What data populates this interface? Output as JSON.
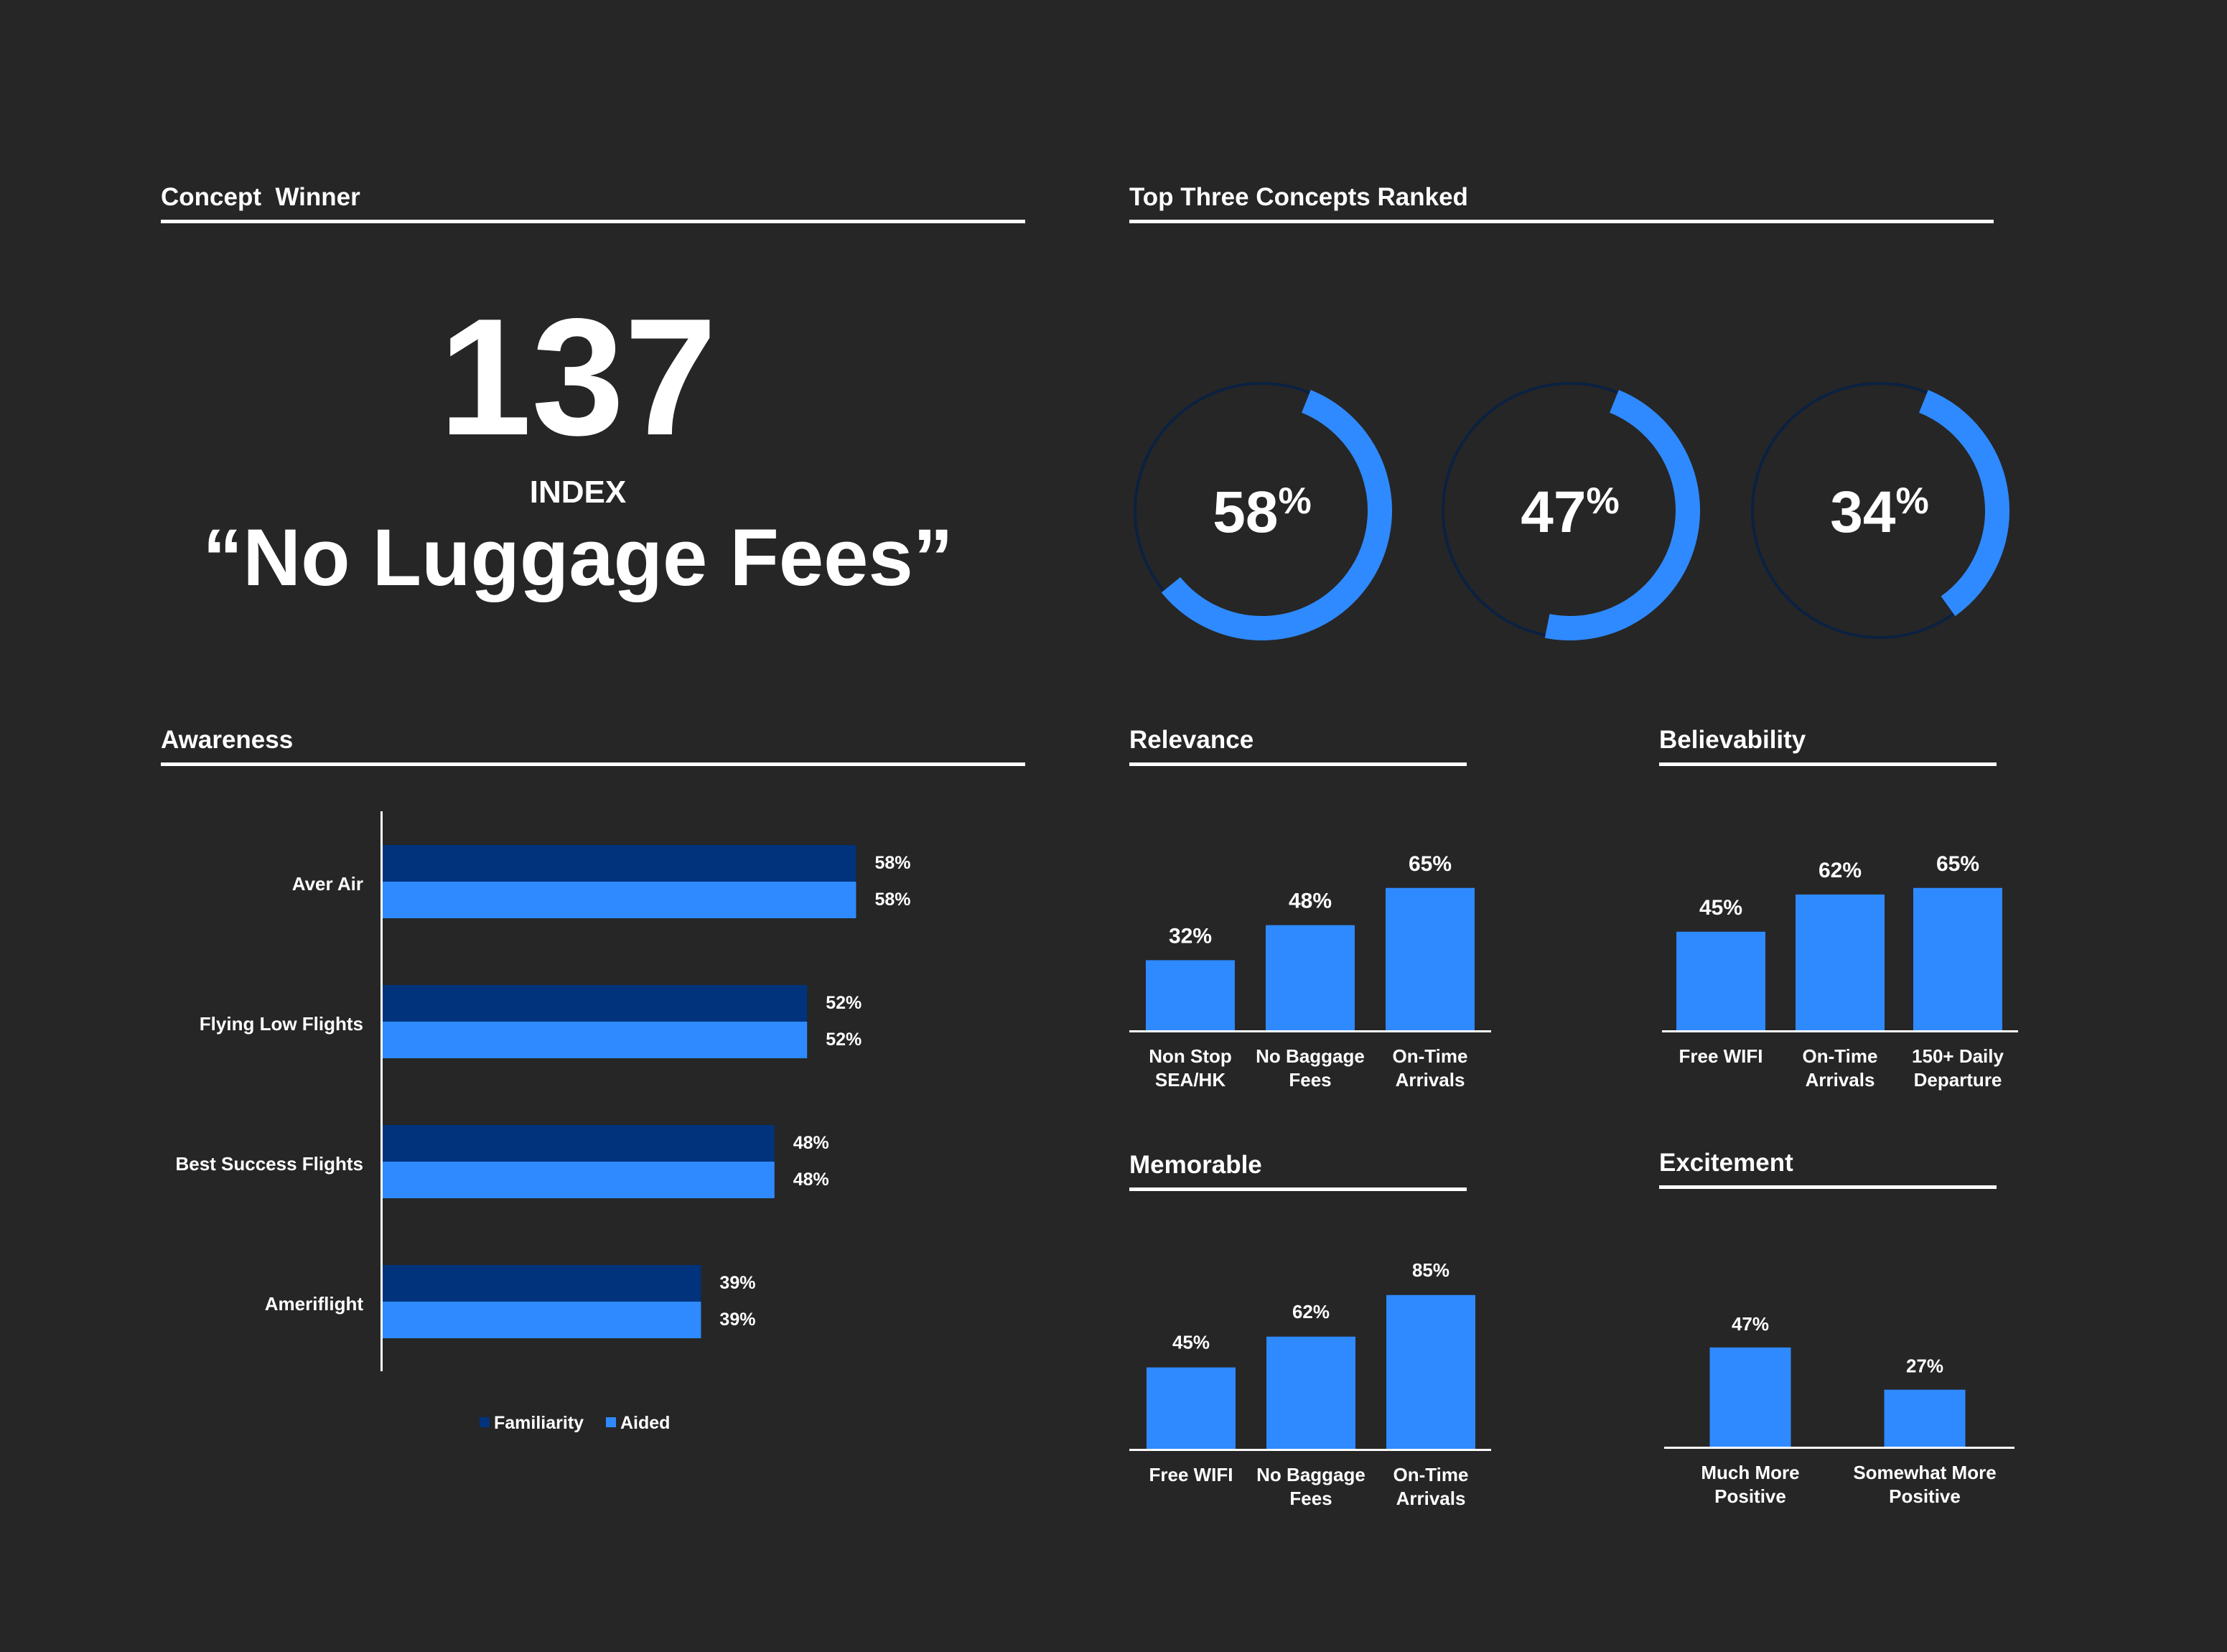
{
  "colors": {
    "background": "#262626",
    "text": "#ffffff",
    "accent_blue": "#2f8aff",
    "dark_blue": "#00337c",
    "ring_track": "#0b2140"
  },
  "concept_winner": {
    "section_title": "Concept  Winner",
    "index_value": "137",
    "index_label": "INDEX",
    "concept_name": "“No Luggage Fees”"
  },
  "top_three": {
    "section_title": "Top Three Concepts Ranked",
    "rings": [
      {
        "value": 58,
        "number": "58",
        "unit": "%"
      },
      {
        "value": 47,
        "number": "47",
        "unit": "%"
      },
      {
        "value": 34,
        "number": "34",
        "unit": "%"
      }
    ]
  },
  "chart_data": [
    {
      "id": "awareness",
      "type": "bar",
      "orientation": "horizontal",
      "title": "Awareness",
      "categories": [
        "Aver Air",
        "Flying Low Flights",
        "Best Success Flights",
        "Ameriflight"
      ],
      "series": [
        {
          "name": "Familiarity",
          "color": "#00337c",
          "values": [
            58,
            52,
            48,
            39
          ],
          "labels": [
            "58%",
            "52%",
            "48%",
            "39%"
          ]
        },
        {
          "name": "Aided",
          "color": "#2f8aff",
          "values": [
            58,
            52,
            48,
            39
          ],
          "labels": [
            "58%",
            "52%",
            "48%",
            "39%"
          ]
        }
      ],
      "xlim": [
        0,
        100
      ],
      "legend_position": "bottom"
    },
    {
      "id": "relevance",
      "type": "bar",
      "title": "Relevance",
      "categories": [
        [
          "Non Stop",
          "SEA/HK"
        ],
        [
          "No Baggage",
          "Fees"
        ],
        [
          "On-Time",
          "Arrivals"
        ]
      ],
      "values": [
        32,
        48,
        65
      ],
      "labels": [
        "32%",
        "48%",
        "65%"
      ],
      "ylim": [
        0,
        100
      ]
    },
    {
      "id": "believability",
      "type": "bar",
      "title": "Believability",
      "categories": [
        [
          "Free WIFI"
        ],
        [
          "On-Time",
          "Arrivals"
        ],
        [
          "150+ Daily",
          "Departure"
        ]
      ],
      "values": [
        45,
        62,
        65
      ],
      "labels": [
        "45%",
        "62%",
        "65%"
      ],
      "ylim": [
        0,
        100
      ]
    },
    {
      "id": "memorable",
      "type": "bar",
      "title": "Memorable",
      "categories": [
        [
          "Free WIFI"
        ],
        [
          "No Baggage",
          "Fees"
        ],
        [
          "On-Time",
          "Arrivals"
        ]
      ],
      "values": [
        45,
        62,
        85
      ],
      "labels": [
        "45%",
        "62%",
        "85%"
      ],
      "ylim": [
        0,
        100
      ]
    },
    {
      "id": "excitement",
      "type": "bar",
      "title": "Excitement",
      "categories": [
        [
          "Much More",
          "Positive"
        ],
        [
          "Somewhat More",
          "Positive"
        ]
      ],
      "values": [
        47,
        27
      ],
      "labels": [
        "47%",
        "27%"
      ],
      "ylim": [
        0,
        100
      ]
    }
  ]
}
